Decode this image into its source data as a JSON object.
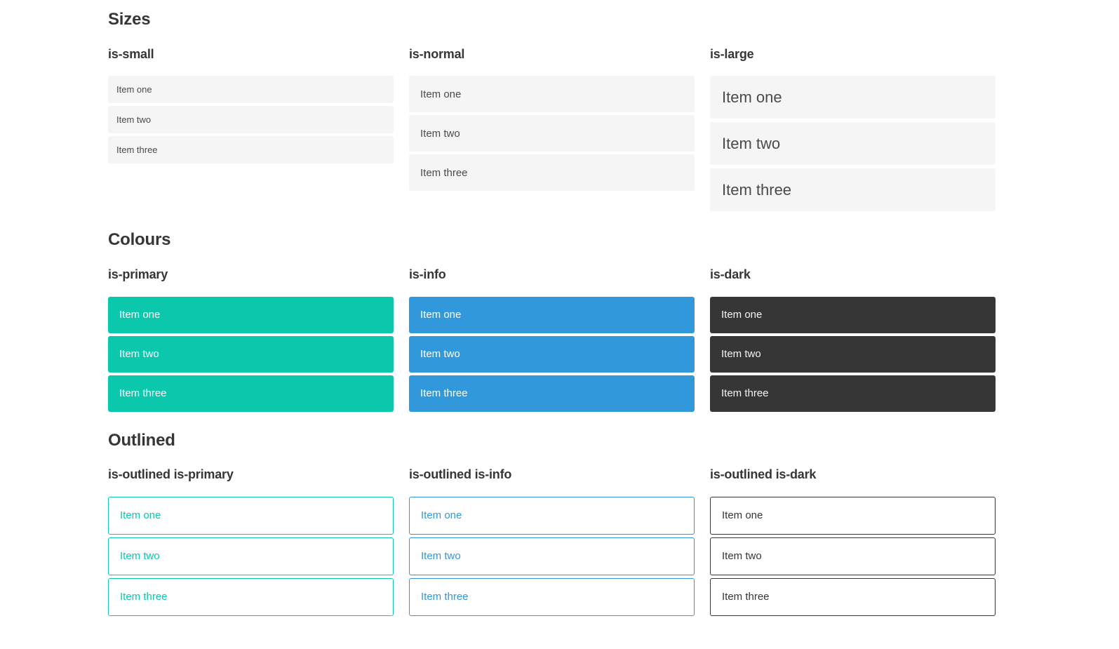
{
  "sections": [
    {
      "title": "Sizes",
      "groups": [
        {
          "label": "is-small",
          "items": [
            "Item one",
            "Item two",
            "Item three"
          ]
        },
        {
          "label": "is-normal",
          "items": [
            "Item one",
            "Item two",
            "Item three"
          ]
        },
        {
          "label": "is-large",
          "items": [
            "Item one",
            "Item two",
            "Item three"
          ]
        }
      ]
    },
    {
      "title": "Colours",
      "groups": [
        {
          "label": "is-primary",
          "items": [
            "Item one",
            "Item two",
            "Item three"
          ]
        },
        {
          "label": "is-info",
          "items": [
            "Item one",
            "Item two",
            "Item three"
          ]
        },
        {
          "label": "is-dark",
          "items": [
            "Item one",
            "Item two",
            "Item three"
          ]
        }
      ]
    },
    {
      "title": "Outlined",
      "groups": [
        {
          "label": "is-outlined is-primary",
          "items": [
            "Item one",
            "Item two",
            "Item three"
          ]
        },
        {
          "label": "is-outlined is-info",
          "items": [
            "Item one",
            "Item two",
            "Item three"
          ]
        },
        {
          "label": "is-outlined is-dark",
          "items": [
            "Item one",
            "Item two",
            "Item three"
          ]
        }
      ]
    }
  ],
  "colors": {
    "primary": "#0bc8ac",
    "info": "#3298dc",
    "dark": "#363636",
    "item_background": "#f5f5f5",
    "item_text": "#4a4a4a",
    "heading_text": "#363636",
    "page_background": "#ffffff"
  }
}
